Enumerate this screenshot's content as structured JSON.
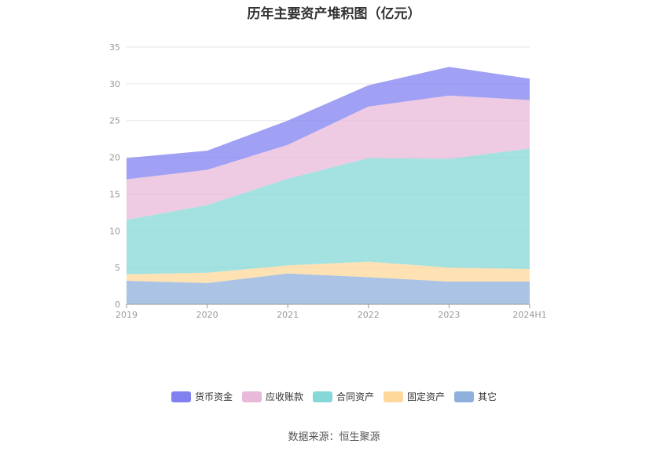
{
  "chart_data": {
    "type": "area",
    "stacked": true,
    "title": "历年主要资产堆积图（亿元）",
    "categories": [
      "2019",
      "2020",
      "2021",
      "2022",
      "2023",
      "2024H1"
    ],
    "ylim": [
      0,
      35
    ],
    "yticks": [
      "0",
      "5",
      "10",
      "15",
      "20",
      "25",
      "30",
      "35"
    ],
    "grid": true,
    "legend_position": "bottom",
    "series": [
      {
        "name": "其它",
        "color": "#8fb0dd",
        "values": [
          3.2,
          2.9,
          4.2,
          3.7,
          3.1,
          3.1
        ]
      },
      {
        "name": "固定资产",
        "color": "#fdd89a",
        "values": [
          0.9,
          1.4,
          1.1,
          2.1,
          1.9,
          1.7
        ]
      },
      {
        "name": "合同资产",
        "color": "#86d8d8",
        "values": [
          7.4,
          9.2,
          11.8,
          14.1,
          14.8,
          16.4
        ]
      },
      {
        "name": "应收账款",
        "color": "#e8b9d8",
        "values": [
          5.5,
          4.8,
          4.6,
          7.0,
          8.6,
          6.6
        ]
      },
      {
        "name": "货币资金",
        "color": "#8080f0",
        "values": [
          2.9,
          2.6,
          3.3,
          2.9,
          3.9,
          2.9
        ]
      }
    ],
    "legend_order": [
      "货币资金",
      "应收账款",
      "合同资产",
      "固定资产",
      "其它"
    ]
  },
  "footer": {
    "source": "数据来源：恒生聚源"
  }
}
